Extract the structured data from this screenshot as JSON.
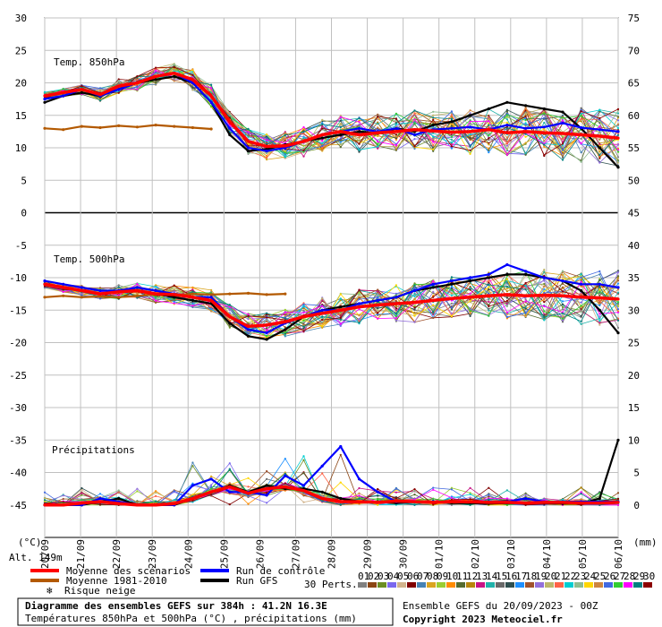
{
  "chart_data": {
    "type": "line",
    "title": "Diagramme des ensembles GEFS sur 384h : 41.2N 16.3E",
    "subtitle": "Températures 850hPa et 500hPa (°C) , précipitations (mm)",
    "x_tick_labels": [
      "20/09",
      "21/09",
      "22/09",
      "23/09",
      "24/09",
      "25/09",
      "26/09",
      "27/09",
      "28/09",
      "29/09",
      "30/09",
      "01/10",
      "02/10",
      "03/10",
      "04/10",
      "05/10",
      "06/10"
    ],
    "x_unit_label": "(mm)",
    "left_unit_label": "(°C)",
    "left_ticks": [
      30,
      25,
      20,
      15,
      10,
      5,
      0,
      -5,
      -10,
      -15,
      -20,
      -25,
      -30,
      -35,
      -40,
      -45
    ],
    "right_ticks": [
      75,
      70,
      65,
      60,
      55,
      50,
      45,
      40,
      35,
      30,
      25,
      20,
      15,
      10,
      5,
      0
    ],
    "ylim_left": [
      -50,
      30
    ],
    "ylim_right": [
      -5,
      75
    ],
    "altitude_label": "Alt. 149m",
    "panels": [
      {
        "label": "Temp. 850hPa",
        "axis": "left"
      },
      {
        "label": "Temp. 500hPa",
        "axis": "left"
      },
      {
        "label": "Précipitations",
        "axis": "right"
      }
    ],
    "series": [
      {
        "name": "Moyenne des scénarios",
        "color": "#ff0000",
        "t850": [
          18,
          18.5,
          19,
          18.2,
          19.5,
          20,
          21,
          21.5,
          20.5,
          18,
          14,
          11,
          10.2,
          10.3,
          11,
          12,
          12.5,
          12,
          12.3,
          12.5,
          12.8,
          12.6,
          12.4,
          12.5,
          12.8,
          12.3,
          12.5,
          12.3,
          12.2,
          12,
          11.8,
          11.5
        ],
        "t500": [
          -11,
          -11.5,
          -12,
          -12.5,
          -12.2,
          -12,
          -12.5,
          -12.6,
          -13,
          -13.5,
          -16,
          -17.5,
          -17.3,
          -16.8,
          -16,
          -15.5,
          -15,
          -14.5,
          -14.2,
          -14,
          -13.8,
          -13.5,
          -13.2,
          -13,
          -12.8,
          -12.6,
          -12.8,
          -12.7,
          -12.8,
          -13,
          -13.1,
          -13.3
        ],
        "precip": [
          0,
          0,
          0.3,
          0.5,
          0.2,
          0,
          0,
          0.2,
          1,
          2,
          2.8,
          1.8,
          2.5,
          2.8,
          2.2,
          1,
          0.5,
          0.5,
          0.4,
          0.6,
          0.5,
          0.4,
          0.5,
          0.5,
          0.4,
          0.4,
          0.3,
          0.4,
          0.4,
          0.3,
          0.3,
          0.4
        ]
      },
      {
        "name": "Moyenne 1981-2010",
        "color": "#b35900",
        "t850": [
          13,
          12.8,
          13.3,
          13.1,
          13.4,
          13.2,
          13.5,
          13.3,
          13.1,
          12.9,
          null
        ],
        "t500": [
          -13,
          -12.8,
          -13,
          -12.9,
          -13,
          -12.8,
          -12.6,
          -12.7,
          -12.5,
          -12.6,
          -12.5,
          -12.4,
          -12.6,
          -12.5,
          null
        ]
      },
      {
        "name": "Run de contrôle",
        "color": "#0000ff",
        "t850": [
          17.5,
          18,
          19,
          18,
          19,
          20,
          21,
          21.5,
          20,
          17,
          13,
          10,
          9.5,
          10,
          11,
          12,
          12.5,
          13,
          12.5,
          13,
          12,
          12.8,
          13,
          13.2,
          12.8,
          13.5,
          13,
          13.2,
          13.8,
          13.1,
          12.8,
          12.5
        ],
        "t500": [
          -10.5,
          -11,
          -11.5,
          -12,
          -12,
          -11.5,
          -12,
          -12.5,
          -13,
          -13,
          -16,
          -18,
          -18.5,
          -17,
          -16,
          -15,
          -15,
          -14,
          -13.5,
          -13,
          -12,
          -11,
          -10.5,
          -10,
          -9.5,
          -8,
          -9,
          -10,
          -10.5,
          -11,
          -11,
          -11.5
        ],
        "precip": [
          0,
          0,
          0,
          1,
          0.5,
          0,
          0,
          0,
          3,
          4,
          2,
          2,
          1.5,
          4.5,
          3,
          6,
          9,
          4,
          2,
          0.5,
          0.5,
          0.5,
          0.5,
          0.5,
          0.5,
          0.5,
          1,
          0.5,
          0.5,
          0.5,
          0.5,
          0.5
        ]
      },
      {
        "name": "Run GFS",
        "color": "#000000",
        "t850": [
          17,
          18,
          18.5,
          18,
          19,
          20,
          20.5,
          21,
          20,
          17,
          12,
          9.5,
          9.8,
          10.5,
          11,
          11.5,
          12,
          12.5,
          12.2,
          13,
          12.5,
          13.5,
          14,
          15,
          16,
          17,
          16.5,
          16,
          15.5,
          13,
          10,
          7
        ],
        "t500": [
          -11,
          -11.5,
          -12,
          -12.5,
          -12,
          -12,
          -12.5,
          -13,
          -13.5,
          -14,
          -17,
          -19,
          -19.5,
          -18,
          -16,
          -15,
          -14.5,
          -14,
          -13.5,
          -13,
          -12,
          -11.5,
          -11,
          -10.5,
          -10,
          -9.5,
          -9.5,
          -10,
          -10.5,
          -12,
          -15,
          -18.5
        ],
        "precip": [
          0,
          0,
          0,
          0.5,
          1,
          0,
          0,
          0,
          1,
          2,
          3,
          2,
          3,
          2.5,
          2.5,
          2,
          1,
          0.5,
          0.5,
          0.3,
          0.5,
          0.5,
          0.3,
          0.3,
          0.2,
          0.3,
          0.2,
          0.3,
          0.2,
          0.2,
          1,
          10
        ]
      }
    ],
    "legend": [
      {
        "label": "Moyenne des scénarios",
        "color": "#ff0000"
      },
      {
        "label": "Moyenne 1981-2010",
        "color": "#b35900"
      },
      {
        "label": "Risque neige",
        "color": "#5b9bd5"
      },
      {
        "label": "Run de contrôle",
        "color": "#0000ff"
      },
      {
        "label": "Run GFS",
        "color": "#000000"
      }
    ],
    "perturbations_label": "30 Perts.",
    "perturbations": [
      {
        "id": "01",
        "color": "#808080"
      },
      {
        "id": "02",
        "color": "#8b4513"
      },
      {
        "id": "03",
        "color": "#6b8e23"
      },
      {
        "id": "04",
        "color": "#7b68ee"
      },
      {
        "id": "05",
        "color": "#d2b48c"
      },
      {
        "id": "06",
        "color": "#800000"
      },
      {
        "id": "07",
        "color": "#4682b4"
      },
      {
        "id": "08",
        "color": "#daa520"
      },
      {
        "id": "09",
        "color": "#9acd32"
      },
      {
        "id": "10",
        "color": "#ff8c00"
      },
      {
        "id": "11",
        "color": "#556b2f"
      },
      {
        "id": "12",
        "color": "#b8860b"
      },
      {
        "id": "13",
        "color": "#c71585"
      },
      {
        "id": "14",
        "color": "#20b2aa"
      },
      {
        "id": "15",
        "color": "#696969"
      },
      {
        "id": "16",
        "color": "#2f4f4f"
      },
      {
        "id": "17",
        "color": "#1e90ff"
      },
      {
        "id": "18",
        "color": "#a0522d"
      },
      {
        "id": "19",
        "color": "#9370db"
      },
      {
        "id": "20",
        "color": "#bdb76b"
      },
      {
        "id": "21",
        "color": "#ff6347"
      },
      {
        "id": "22",
        "color": "#00ced1"
      },
      {
        "id": "23",
        "color": "#8fbc8f"
      },
      {
        "id": "24",
        "color": "#ffd700"
      },
      {
        "id": "25",
        "color": "#cd853f"
      },
      {
        "id": "26",
        "color": "#4169e1"
      },
      {
        "id": "27",
        "color": "#32cd32"
      },
      {
        "id": "28",
        "color": "#ff00ff"
      },
      {
        "id": "29",
        "color": "#008080"
      },
      {
        "id": "30",
        "color": "#8b0000"
      }
    ]
  },
  "footer": {
    "title": "Diagramme des ensembles GEFS sur 384h : 41.2N 16.3E",
    "subtitle": "Températures 850hPa et 500hPa (°C) , précipitations (mm)",
    "run_info": "Ensemble GEFS du 20/09/2023 - 00Z",
    "copyright": "Copyright 2023 Meteociel.fr"
  }
}
